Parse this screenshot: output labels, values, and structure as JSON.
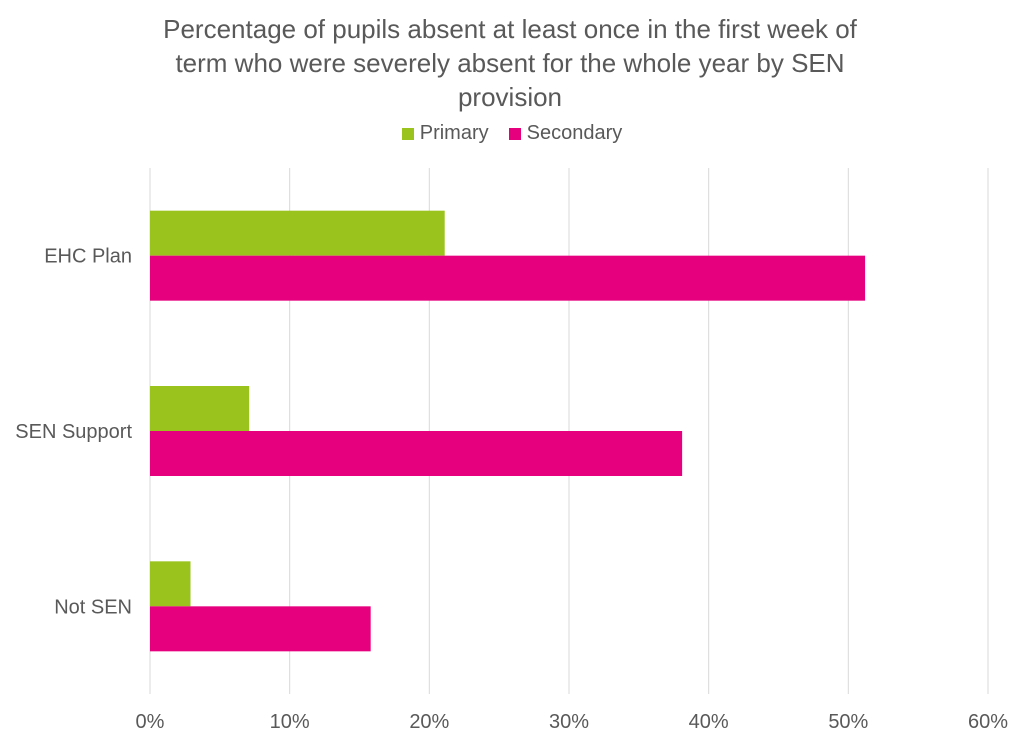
{
  "chart_data": {
    "type": "bar",
    "orientation": "horizontal",
    "title": "Percentage of pupils absent at least once in the first week of term who were severely absent for the whole year by SEN provision",
    "title_lines": [
      "Percentage of pupils absent at least once in the first week of",
      "term who were severely absent for the whole year by SEN",
      "provision"
    ],
    "categories": [
      "EHC Plan",
      "SEN Support",
      "Not SEN"
    ],
    "series": [
      {
        "name": "Primary",
        "color": "#9bc31e",
        "values": [
          21.1,
          7.1,
          2.9
        ]
      },
      {
        "name": "Secondary",
        "color": "#e6007e",
        "values": [
          51.2,
          38.1,
          15.8
        ]
      }
    ],
    "xlim": [
      0,
      60
    ],
    "xticks": [
      0,
      10,
      20,
      30,
      40,
      50,
      60
    ],
    "xtick_labels": [
      "0%",
      "10%",
      "20%",
      "30%",
      "40%",
      "50%",
      "60%"
    ],
    "xlabel": "",
    "ylabel": "",
    "grid": true,
    "legend_position": "top-center"
  }
}
